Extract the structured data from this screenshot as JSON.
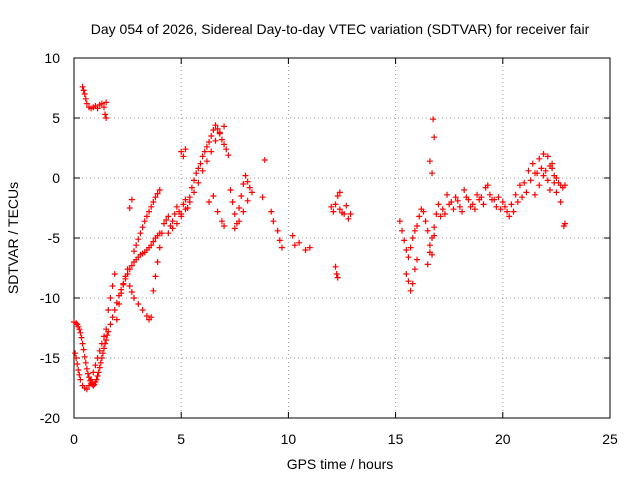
{
  "chart_data": {
    "type": "scatter",
    "title": "Day 054 of 2026, Sidereal Day-to-day VTEC variation (SDTVAR) for receiver fair",
    "xlabel": "GPS time / hours",
    "ylabel": "SDTVAR / TECUs",
    "xlim": [
      0,
      25
    ],
    "ylim": [
      -20,
      10
    ],
    "xticks": [
      0,
      5,
      10,
      15,
      20,
      25
    ],
    "yticks": [
      -20,
      -15,
      -10,
      -5,
      0,
      5,
      10
    ],
    "xtick_labels": [
      "0",
      "5",
      "10",
      "15",
      "20",
      "25"
    ],
    "ytick_labels": [
      "-20",
      "-15",
      "-10",
      "-5",
      "0",
      "5",
      "10"
    ],
    "grid": true,
    "marker": "+",
    "marker_color": "#ff0000",
    "series": [
      {
        "name": "SDTVAR",
        "x": [
          0.0,
          0.1,
          0.15,
          0.2,
          0.25,
          0.3,
          0.35,
          0.4,
          0.45,
          0.5,
          0.55,
          0.6,
          0.65,
          0.7,
          0.75,
          0.8,
          0.85,
          0.9,
          0.95,
          1.0,
          1.05,
          1.1,
          1.15,
          1.2,
          1.25,
          1.3,
          1.35,
          1.4,
          1.45,
          1.5,
          1.55,
          1.6,
          1.7,
          1.8,
          1.9,
          2.0,
          2.1,
          2.2,
          2.3,
          2.4,
          2.5,
          2.6,
          2.7,
          2.8,
          2.9,
          3.0,
          3.1,
          3.2,
          3.3,
          3.4,
          3.5,
          3.6,
          3.7,
          3.8,
          3.9,
          4.0,
          0.05,
          0.1,
          0.15,
          0.2,
          0.25,
          0.3,
          0.4,
          0.5,
          0.6,
          0.7,
          0.8,
          0.9,
          1.0,
          1.1,
          1.2,
          1.3,
          1.4,
          1.5,
          0.4,
          0.45,
          0.5,
          0.55,
          0.6,
          0.7,
          0.8,
          0.9,
          1.0,
          1.1,
          1.2,
          1.3,
          1.4,
          1.5,
          1.45,
          1.5,
          1.6,
          1.7,
          1.8,
          1.9,
          2.0,
          2.1,
          2.2,
          2.3,
          2.4,
          2.5,
          2.6,
          2.7,
          2.8,
          2.9,
          3.0,
          3.1,
          3.2,
          3.3,
          3.4,
          3.5,
          3.6,
          3.7,
          3.8,
          3.9,
          4.0,
          2.6,
          2.7,
          2.8,
          3.0,
          3.2,
          3.4,
          3.5,
          3.6,
          3.7,
          3.8,
          3.9,
          4.0,
          4.1,
          4.2,
          4.3,
          4.4,
          4.5,
          4.6,
          4.7,
          4.8,
          4.9,
          5.0,
          5.1,
          5.2,
          5.3,
          5.4,
          5.5,
          5.6,
          5.7,
          5.8,
          5.9,
          6.0,
          6.1,
          6.2,
          6.3,
          6.4,
          6.5,
          6.6,
          6.7,
          6.8,
          6.9,
          7.0,
          7.1,
          7.2,
          4.4,
          4.6,
          4.8,
          5.0,
          5.2,
          5.4,
          5.6,
          5.8,
          6.0,
          6.2,
          6.4,
          6.6,
          6.8,
          7.0,
          5.0,
          5.1,
          5.2,
          6.3,
          6.5,
          6.7,
          6.9,
          7.0,
          7.3,
          7.4,
          7.5,
          7.6,
          7.7,
          7.8,
          7.9,
          8.0,
          8.1,
          8.2,
          8.3,
          7.5,
          7.7,
          7.9,
          8.1,
          8.9,
          8.8,
          9.2,
          9.3,
          9.5,
          9.6,
          9.7,
          10.2,
          10.3,
          10.5,
          10.8,
          11.0,
          12.0,
          12.1,
          12.2,
          12.3,
          12.4,
          12.5,
          12.6,
          12.7,
          12.8,
          12.9,
          12.2,
          12.25,
          12.3,
          12.4,
          15.2,
          15.3,
          15.4,
          15.5,
          15.6,
          15.7,
          15.8,
          15.9,
          16.0,
          16.1,
          16.2,
          16.3,
          16.4,
          16.5,
          16.6,
          16.7,
          16.8,
          16.9,
          15.5,
          15.6,
          15.7,
          15.8,
          15.9,
          16.0,
          16.5,
          16.6,
          16.7,
          16.8,
          16.7,
          16.75,
          16.8,
          16.6,
          17.0,
          17.2,
          17.4,
          17.6,
          17.8,
          18.0,
          18.2,
          18.4,
          18.6,
          18.8,
          19.0,
          19.2,
          19.4,
          19.6,
          19.8,
          20.0,
          20.2,
          20.4,
          20.6,
          20.8,
          21.0,
          21.2,
          21.4,
          21.6,
          21.8,
          22.0,
          22.2,
          22.4,
          22.6,
          22.8,
          17.1,
          17.3,
          17.5,
          17.7,
          17.9,
          18.1,
          18.3,
          18.5,
          18.7,
          18.9,
          19.1,
          19.3,
          19.5,
          19.7,
          19.9,
          20.1,
          20.3,
          20.5,
          20.7,
          20.9,
          21.1,
          21.3,
          21.5,
          21.7,
          21.9,
          22.1,
          22.3,
          22.5,
          22.7,
          22.9,
          21.5,
          21.7,
          21.9,
          22.1,
          22.3,
          22.5,
          22.7,
          22.2,
          22.4,
          22.9,
          22.85
        ],
        "y": [
          -12.0,
          -12.1,
          -12.2,
          -12.4,
          -12.6,
          -12.9,
          -13.3,
          -13.8,
          -14.3,
          -14.9,
          -15.4,
          -15.9,
          -16.3,
          -16.6,
          -16.9,
          -17.1,
          -17.2,
          -17.3,
          -17.2,
          -17.0,
          -16.8,
          -16.5,
          -16.2,
          -15.8,
          -15.4,
          -15.0,
          -14.6,
          -14.2,
          -13.8,
          -13.5,
          -13.1,
          -12.8,
          -12.2,
          -11.6,
          -11.0,
          -10.4,
          -9.8,
          -9.3,
          -8.8,
          -8.4,
          -8.0,
          -7.6,
          -7.3,
          -7.0,
          -6.8,
          -6.6,
          -6.4,
          -6.3,
          -6.2,
          -6.0,
          -5.8,
          -5.6,
          -5.3,
          -5.0,
          -4.8,
          -4.6,
          -14.6,
          -15.0,
          -15.5,
          -16.0,
          -16.4,
          -16.8,
          -17.3,
          -17.5,
          -17.6,
          -17.3,
          -16.8,
          -16.2,
          -15.6,
          -15.0,
          -14.4,
          -13.8,
          -13.2,
          -12.6,
          7.6,
          7.3,
          7.0,
          6.6,
          6.2,
          5.9,
          5.8,
          5.9,
          6.0,
          5.8,
          6.1,
          6.2,
          5.9,
          6.3,
          5.3,
          5.0,
          -11.0,
          -10.0,
          -9.0,
          -8.0,
          -11.8,
          -10.5,
          -9.6,
          -8.9,
          -8.2,
          -7.6,
          -2.5,
          -1.8,
          -6.1,
          -5.6,
          -5.1,
          -4.6,
          -4.1,
          -3.6,
          -3.2,
          -2.8,
          -2.4,
          -2.0,
          -1.6,
          -1.3,
          -1.0,
          -9.0,
          -9.5,
          -10.0,
          -10.5,
          -11.0,
          -11.5,
          -11.8,
          -11.6,
          -9.4,
          -8.2,
          -7.0,
          -5.8,
          -4.6,
          -3.8,
          -3.5,
          -3.2,
          -4.0,
          -3.6,
          -3.0,
          -2.4,
          -2.8,
          -3.0,
          -2.2,
          -1.8,
          -2.5,
          -1.6,
          -0.8,
          -0.2,
          0.4,
          0.8,
          1.2,
          1.8,
          2.2,
          2.6,
          3.0,
          3.5,
          4.0,
          4.4,
          4.1,
          3.7,
          3.2,
          2.8,
          2.4,
          1.9,
          -4.6,
          -4.2,
          -3.8,
          -3.2,
          -2.6,
          -2.0,
          -1.2,
          -0.4,
          0.6,
          1.4,
          2.2,
          3.1,
          3.8,
          4.3,
          2.2,
          1.8,
          2.4,
          -2.0,
          -1.5,
          -2.8,
          -3.6,
          -4.0,
          -1.0,
          -2.0,
          -3.0,
          -3.8,
          -2.5,
          -1.5,
          -0.5,
          0.2,
          -0.3,
          -0.8,
          -1.2,
          -4.2,
          -3.6,
          -2.8,
          -1.9,
          1.5,
          -1.6,
          -2.8,
          -3.6,
          -4.4,
          -5.2,
          -5.8,
          -4.8,
          -5.6,
          -5.4,
          -6.0,
          -5.8,
          -2.4,
          -2.8,
          -2.2,
          -1.5,
          -2.6,
          -2.9,
          -3.0,
          -2.3,
          -3.4,
          -3.0,
          -7.4,
          -8.0,
          -8.3,
          -1.2,
          -3.6,
          -4.4,
          -5.2,
          -6.0,
          -6.6,
          -5.8,
          -5.0,
          -4.4,
          -4.0,
          -3.2,
          -2.6,
          -2.8,
          -3.6,
          -4.4,
          -5.6,
          -6.4,
          -4.8,
          -3.0,
          -8.0,
          -8.6,
          -9.4,
          -8.8,
          -7.6,
          -6.8,
          -7.2,
          -6.2,
          -5.0,
          -4.1,
          0.4,
          4.9,
          3.4,
          1.4,
          -2.2,
          -2.6,
          -1.4,
          -2.0,
          -1.6,
          -2.4,
          -1.0,
          -1.8,
          -2.2,
          -1.4,
          -1.6,
          -0.8,
          -1.4,
          -1.8,
          -1.6,
          -2.0,
          -2.8,
          -2.2,
          -1.4,
          -0.6,
          -0.4,
          0.6,
          1.2,
          0.4,
          0.8,
          0.6,
          1.0,
          0.2,
          -0.4,
          -0.8,
          -3.2,
          -3.0,
          -2.2,
          -2.6,
          -1.9,
          -2.8,
          -1.6,
          -2.4,
          -2.6,
          -1.8,
          -2.2,
          -0.6,
          -1.8,
          -2.4,
          -2.6,
          -2.4,
          -3.2,
          -2.8,
          -2.0,
          -1.6,
          -1.2,
          -0.2,
          0.4,
          1.6,
          2.0,
          1.8,
          1.2,
          -1.2,
          -2.0,
          -0.6,
          -1.4,
          -0.6,
          0.2,
          -0.2,
          0.8,
          0.0,
          -0.6,
          -1.0,
          -0.4,
          -3.8,
          -4.0
        ]
      }
    ]
  }
}
